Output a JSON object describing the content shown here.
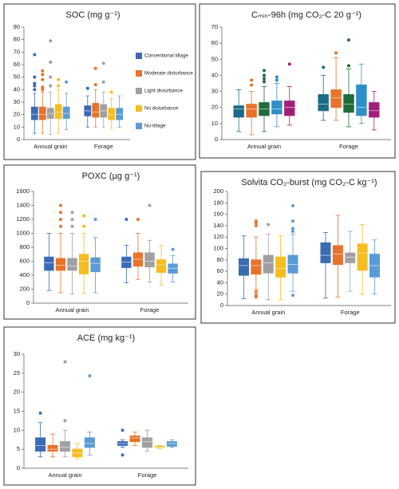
{
  "chart_data": [
    {
      "type": "box",
      "title": "SOC (mg g⁻¹)",
      "categories": [
        "Annual grain",
        "Forage"
      ],
      "ylim": [
        0,
        90
      ],
      "yticks": [
        0,
        10,
        20,
        30,
        40,
        50,
        60,
        70,
        80,
        90
      ],
      "legend": "right",
      "series": [
        {
          "name": "Conventional tillage",
          "color": "#3a6bb5",
          "boxes": [
            {
              "whislo": 5,
              "q1": 16,
              "med": 20,
              "q3": 26,
              "whishi": 37,
              "fliers": [
                40,
                43,
                45,
                50,
                68
              ]
            },
            {
              "whislo": 10,
              "q1": 19,
              "med": 23,
              "q3": 27,
              "whishi": 35,
              "fliers": [
                41
              ]
            }
          ]
        },
        {
          "name": "Moderate disturbance",
          "color": "#e8732a",
          "boxes": [
            {
              "whislo": 5,
              "q1": 16,
              "med": 20,
              "q3": 26,
              "whishi": 38,
              "fliers": [
                40,
                42,
                48,
                52,
                55
              ]
            },
            {
              "whislo": 10,
              "q1": 18,
              "med": 22,
              "q3": 29,
              "whishi": 40,
              "fliers": [
                44,
                57
              ]
            }
          ]
        },
        {
          "name": "Light disturbance",
          "color": "#a0a0a0",
          "boxes": [
            {
              "whislo": 4,
              "q1": 17,
              "med": 21,
              "q3": 25,
              "whishi": 38,
              "fliers": [
                43,
                50,
                62,
                79
              ]
            },
            {
              "whislo": 10,
              "q1": 18,
              "med": 23,
              "q3": 28,
              "whishi": 38,
              "fliers": [
                46,
                61
              ]
            }
          ]
        },
        {
          "name": "No disturbance",
          "color": "#f5bd1f",
          "boxes": [
            {
              "whislo": 5,
              "q1": 17,
              "med": 22,
              "q3": 28,
              "whishi": 40,
              "fliers": [
                43,
                48
              ]
            },
            {
              "whislo": 9,
              "q1": 16,
              "med": 20,
              "q3": 25,
              "whishi": 33,
              "fliers": [
                38
              ]
            }
          ]
        },
        {
          "name": "No-tillage",
          "color": "#5b9bd5",
          "boxes": [
            {
              "whislo": 8,
              "q1": 17,
              "med": 21,
              "q3": 26,
              "whishi": 37,
              "fliers": [
                46
              ]
            },
            {
              "whislo": 10,
              "q1": 16,
              "med": 20,
              "q3": 25,
              "whishi": 35,
              "fliers": []
            }
          ]
        }
      ]
    },
    {
      "type": "box",
      "title": "Cₘᵢₙ-96h (mg CO₂-C 20 g⁻¹)",
      "categories": [
        "Annual grain",
        "Forage"
      ],
      "ylim": [
        0,
        70
      ],
      "yticks": [
        0,
        10,
        20,
        30,
        40,
        50,
        60,
        70
      ],
      "series": [
        {
          "color": "#1a6b87",
          "boxes": [
            {
              "whislo": 5,
              "q1": 14,
              "med": 19,
              "q3": 21,
              "whishi": 31,
              "fliers": []
            },
            {
              "whislo": 12,
              "q1": 18,
              "med": 22,
              "q3": 28,
              "whishi": 40,
              "fliers": [
                45
              ]
            }
          ]
        },
        {
          "color": "#e8732a",
          "boxes": [
            {
              "whislo": 3,
              "q1": 14,
              "med": 19,
              "q3": 22,
              "whishi": 30,
              "fliers": [
                34,
                37
              ]
            },
            {
              "whislo": 12,
              "q1": 20,
              "med": 26,
              "q3": 31,
              "whishi": 51,
              "fliers": [
                54
              ]
            }
          ]
        },
        {
          "color": "#1f6b3a",
          "boxes": [
            {
              "whislo": 5,
              "q1": 15,
              "med": 19,
              "q3": 23,
              "whishi": 33,
              "fliers": [
                36,
                38,
                40,
                43
              ]
            },
            {
              "whislo": 8,
              "q1": 17,
              "med": 22,
              "q3": 28,
              "whishi": 44,
              "fliers": [
                46,
                62
              ]
            }
          ]
        },
        {
          "color": "#2f8fc8",
          "boxes": [
            {
              "whislo": 8,
              "q1": 16,
              "med": 19,
              "q3": 24,
              "whishi": 35,
              "fliers": [
                37,
                39
              ]
            },
            {
              "whislo": 10,
              "q1": 15,
              "med": 20,
              "q3": 34,
              "whishi": 47,
              "fliers": []
            }
          ]
        },
        {
          "color": "#a0207a",
          "boxes": [
            {
              "whislo": 9,
              "q1": 15,
              "med": 20,
              "q3": 24,
              "whishi": 33,
              "fliers": [
                47
              ]
            },
            {
              "whislo": 6,
              "q1": 14,
              "med": 18,
              "q3": 23,
              "whishi": 30,
              "fliers": []
            }
          ]
        }
      ]
    },
    {
      "type": "box",
      "title": "POXC (µg g⁻¹)",
      "categories": [
        "Annual grain",
        "Forage"
      ],
      "ylim": [
        0,
        1600
      ],
      "yticks": [
        0,
        200,
        400,
        600,
        800,
        1000,
        1200,
        1400,
        1600
      ],
      "series": [
        {
          "color": "#3a6bb5",
          "boxes": [
            {
              "whislo": 180,
              "q1": 470,
              "med": 580,
              "q3": 660,
              "whishi": 1000,
              "fliers": []
            },
            {
              "whislo": 290,
              "q1": 510,
              "med": 590,
              "q3": 660,
              "whishi": 830,
              "fliers": [
                1200
              ]
            }
          ]
        },
        {
          "color": "#e8732a",
          "boxes": [
            {
              "whislo": 150,
              "q1": 470,
              "med": 540,
              "q3": 640,
              "whishi": 1000,
              "fliers": [
                1100,
                1200,
                1300,
                1400
              ]
            },
            {
              "whislo": 340,
              "q1": 530,
              "med": 630,
              "q3": 720,
              "whishi": 1000,
              "fliers": [
                1200
              ]
            }
          ]
        },
        {
          "color": "#a0a0a0",
          "boxes": [
            {
              "whislo": 130,
              "q1": 470,
              "med": 530,
              "q3": 640,
              "whishi": 1000,
              "fliers": [
                1100,
                1200,
                1300
              ]
            },
            {
              "whislo": 300,
              "q1": 520,
              "med": 600,
              "q3": 720,
              "whishi": 900,
              "fliers": [
                1400
              ]
            }
          ]
        },
        {
          "color": "#f5bd1f",
          "boxes": [
            {
              "whislo": 140,
              "q1": 420,
              "med": 600,
              "q3": 700,
              "whishi": 1000,
              "fliers": [
                1100,
                1250
              ]
            },
            {
              "whislo": 260,
              "q1": 440,
              "med": 550,
              "q3": 620,
              "whishi": 830,
              "fliers": []
            }
          ]
        },
        {
          "color": "#5b9bd5",
          "boxes": [
            {
              "whislo": 150,
              "q1": 450,
              "med": 570,
              "q3": 650,
              "whishi": 940,
              "fliers": [
                1200
              ]
            },
            {
              "whislo": 300,
              "q1": 430,
              "med": 500,
              "q3": 560,
              "whishi": 680,
              "fliers": [
                770
              ]
            }
          ]
        }
      ]
    },
    {
      "type": "box",
      "title": "Solvita CO₂-burst (mg CO₂-C kg⁻¹)",
      "categories": [
        "Annual grain",
        "Forage"
      ],
      "ylim": [
        0,
        200
      ],
      "yticks": [
        0,
        20,
        40,
        60,
        80,
        100,
        120,
        140,
        160,
        180,
        200
      ],
      "series": [
        {
          "color": "#3a6bb5",
          "boxes": [
            {
              "whislo": 12,
              "q1": 53,
              "med": 70,
              "q3": 82,
              "whishi": 122,
              "fliers": []
            },
            {
              "whislo": 13,
              "q1": 75,
              "med": 88,
              "q3": 110,
              "whishi": 128,
              "fliers": []
            }
          ]
        },
        {
          "color": "#e8732a",
          "boxes": [
            {
              "whislo": 28,
              "q1": 55,
              "med": 70,
              "q3": 80,
              "whishi": 120,
              "fliers": [
                15,
                18,
                24,
                140,
                145,
                148
              ]
            },
            {
              "whislo": 15,
              "q1": 72,
              "med": 90,
              "q3": 105,
              "whishi": 158,
              "fliers": []
            }
          ]
        },
        {
          "color": "#a0a0a0",
          "boxes": [
            {
              "whislo": 10,
              "q1": 57,
              "med": 75,
              "q3": 88,
              "whishi": 125,
              "fliers": [
                142
              ]
            },
            {
              "whislo": 25,
              "q1": 75,
              "med": 85,
              "q3": 92,
              "whishi": 130,
              "fliers": []
            }
          ]
        },
        {
          "color": "#f5bd1f",
          "boxes": [
            {
              "whislo": 10,
              "q1": 50,
              "med": 65,
              "q3": 85,
              "whishi": 122,
              "fliers": []
            },
            {
              "whislo": 20,
              "q1": 62,
              "med": 92,
              "q3": 108,
              "whishi": 142,
              "fliers": []
            }
          ]
        },
        {
          "color": "#5b9bd5",
          "boxes": [
            {
              "whislo": 25,
              "q1": 57,
              "med": 72,
              "q3": 88,
              "whishi": 125,
              "fliers": [
                18,
                130,
                135,
                148,
                175
              ]
            },
            {
              "whislo": 20,
              "q1": 50,
              "med": 70,
              "q3": 90,
              "whishi": 115,
              "fliers": []
            }
          ]
        }
      ]
    },
    {
      "type": "box",
      "title": "ACE (mg kg⁻¹)",
      "categories": [
        "Annual grain",
        "Forage"
      ],
      "ylim": [
        0,
        30
      ],
      "yticks": [
        0,
        5,
        10,
        15,
        20,
        25,
        30
      ],
      "series": [
        {
          "color": "#3a6bb5",
          "boxes": [
            {
              "whislo": 3,
              "q1": 4.5,
              "med": 6,
              "q3": 8,
              "whishi": 12,
              "fliers": [
                14.5
              ]
            },
            {
              "whislo": 5.5,
              "q1": 6,
              "med": 6.5,
              "q3": 7,
              "whishi": 7.5,
              "fliers": [
                3.5,
                10
              ]
            }
          ]
        },
        {
          "color": "#e8732a",
          "boxes": [
            {
              "whislo": 3,
              "q1": 4.5,
              "med": 5,
              "q3": 6,
              "whishi": 9,
              "fliers": []
            },
            {
              "whislo": 6,
              "q1": 7,
              "med": 8,
              "q3": 8.5,
              "whishi": 9.5,
              "fliers": []
            }
          ]
        },
        {
          "color": "#a0a0a0",
          "boxes": [
            {
              "whislo": 3,
              "q1": 4.5,
              "med": 5.5,
              "q3": 7,
              "whishi": 10,
              "fliers": [
                12.5,
                28
              ]
            },
            {
              "whislo": 4.5,
              "q1": 5.5,
              "med": 7,
              "q3": 8,
              "whishi": 10,
              "fliers": []
            }
          ]
        },
        {
          "color": "#f5bd1f",
          "boxes": [
            {
              "whislo": 2.5,
              "q1": 3,
              "med": 4,
              "q3": 5,
              "whishi": 6.5,
              "fliers": []
            },
            {
              "whislo": 5.2,
              "q1": 5.5,
              "med": 5.6,
              "q3": 5.8,
              "whishi": 6,
              "fliers": []
            }
          ]
        },
        {
          "color": "#5b9bd5",
          "boxes": [
            {
              "whislo": 3.5,
              "q1": 5.5,
              "med": 6.5,
              "q3": 8,
              "whishi": 9.5,
              "fliers": [
                24.3
              ]
            },
            {
              "whislo": 5.5,
              "q1": 5.8,
              "med": 6.5,
              "q3": 7,
              "whishi": 7.5,
              "fliers": []
            }
          ]
        }
      ]
    }
  ]
}
